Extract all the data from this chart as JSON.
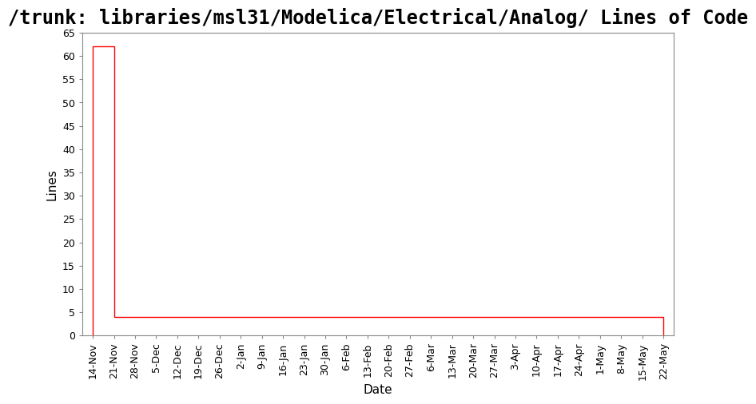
{
  "title": "/trunk: libraries/msl31/Modelica/Electrical/Analog/ Lines of Code",
  "xlabel": "Date",
  "ylabel": "Lines",
  "ylim": [
    0,
    65
  ],
  "yticks": [
    0,
    5,
    10,
    15,
    20,
    25,
    30,
    35,
    40,
    45,
    50,
    55,
    60,
    65
  ],
  "line_color": "#ff0000",
  "line_width": 1.0,
  "x_labels": [
    "14-Nov",
    "21-Nov",
    "28-Nov",
    "5-Dec",
    "12-Dec",
    "19-Dec",
    "26-Dec",
    "2-Jan",
    "9-Jan",
    "16-Jan",
    "23-Jan",
    "30-Jan",
    "6-Feb",
    "13-Feb",
    "20-Feb",
    "27-Feb",
    "6-Mar",
    "13-Mar",
    "20-Mar",
    "27-Mar",
    "3-Apr",
    "10-Apr",
    "17-Apr",
    "24-Apr",
    "1-May",
    "8-May",
    "15-May",
    "22-May"
  ],
  "step_data_x": [
    0,
    0,
    1,
    1,
    27,
    27
  ],
  "step_data_y": [
    0,
    62,
    62,
    4,
    4,
    0
  ],
  "background_color": "#ffffff",
  "title_fontsize": 17,
  "title_fontweight": "bold",
  "title_fontfamily": "monospace",
  "axis_label_fontsize": 11,
  "tick_fontsize": 9
}
